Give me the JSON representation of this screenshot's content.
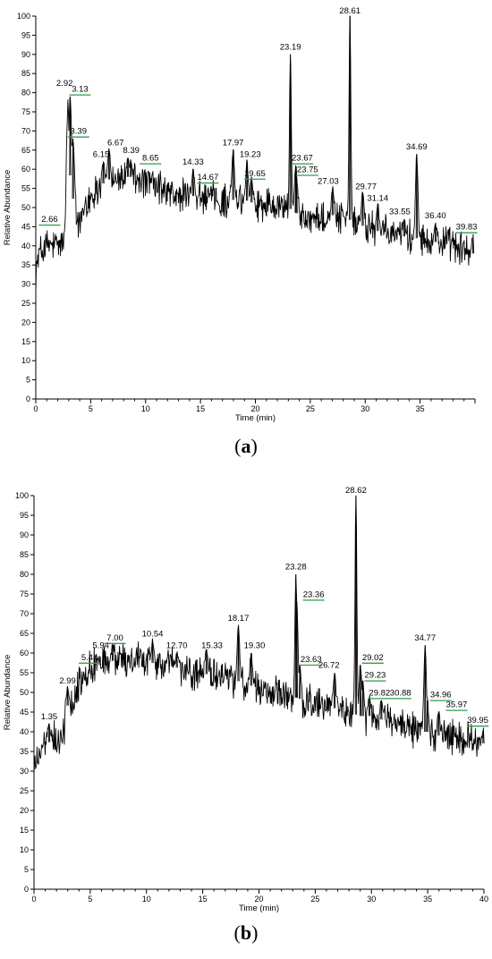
{
  "chart_data": [
    {
      "type": "line",
      "panel": "(a)",
      "panel_letter": "a",
      "xlabel": "Time (min)",
      "ylabel": "Relative Abundance",
      "xlim": [
        0,
        40
      ],
      "ylim": [
        0,
        100
      ],
      "xticks": [
        0,
        5,
        10,
        15,
        20,
        25,
        30,
        35
      ],
      "yticks": [
        0,
        5,
        10,
        15,
        20,
        25,
        30,
        35,
        40,
        45,
        50,
        55,
        60,
        65,
        70,
        75,
        80,
        85,
        90,
        95,
        100
      ],
      "trace_color": "#000000",
      "marker_color": "#2e9e4f",
      "baseline": [
        [
          0,
          33
        ],
        [
          0.3,
          38
        ],
        [
          1,
          40
        ],
        [
          2,
          40
        ],
        [
          2.6,
          41
        ],
        [
          2.75,
          55
        ],
        [
          2.85,
          72
        ],
        [
          2.92,
          80
        ],
        [
          3.05,
          60
        ],
        [
          3.3,
          55
        ],
        [
          3.6,
          46
        ],
        [
          4,
          46
        ],
        [
          5,
          53
        ],
        [
          6,
          56
        ],
        [
          7,
          58
        ],
        [
          8,
          58
        ],
        [
          9,
          58
        ],
        [
          10,
          57
        ],
        [
          11,
          55
        ],
        [
          12,
          54
        ],
        [
          13,
          53
        ],
        [
          14,
          53
        ],
        [
          15,
          53
        ],
        [
          16,
          52
        ],
        [
          17,
          52
        ],
        [
          18,
          52
        ],
        [
          19,
          52
        ],
        [
          20,
          51
        ],
        [
          21,
          51
        ],
        [
          22,
          51
        ],
        [
          23,
          50
        ],
        [
          24,
          48
        ],
        [
          25,
          47
        ],
        [
          26,
          47
        ],
        [
          27,
          48
        ],
        [
          28,
          48
        ],
        [
          29,
          46
        ],
        [
          30,
          45
        ],
        [
          31,
          44
        ],
        [
          32,
          43
        ],
        [
          33,
          43
        ],
        [
          34,
          42
        ],
        [
          35,
          42
        ],
        [
          36,
          41
        ],
        [
          37,
          41
        ],
        [
          38,
          40
        ],
        [
          39,
          39
        ],
        [
          39.8,
          38
        ]
      ],
      "noise": 3.5,
      "peaks": [
        {
          "x": 2.92,
          "y": 80,
          "label": "2.92",
          "lx": -0.3,
          "ly": 81.5
        },
        {
          "x": 3.13,
          "y": 79,
          "label": "3.13",
          "lx": 0.9,
          "ly": 80,
          "marker": true
        },
        {
          "x": 3.39,
          "y": 68,
          "label": "3.39",
          "lx": 0.5,
          "ly": 69,
          "marker": true
        },
        {
          "x": 2.66,
          "y": 45,
          "label": "2.66",
          "lx": -1.4,
          "ly": 46,
          "marker": true
        },
        {
          "x": 6.15,
          "y": 62,
          "label": "6.15",
          "lx": -0.2,
          "ly": 63
        },
        {
          "x": 6.67,
          "y": 65,
          "label": "6.67",
          "lx": 0.6,
          "ly": 66
        },
        {
          "x": 8.39,
          "y": 63,
          "label": "8.39",
          "lx": 0.3,
          "ly": 64
        },
        {
          "x": 8.65,
          "y": 62,
          "label": "8.65",
          "lx": 1.8,
          "ly": 62,
          "marker": true
        },
        {
          "x": 14.33,
          "y": 60,
          "label": "14.33",
          "lx": 0,
          "ly": 61
        },
        {
          "x": 14.67,
          "y": 56,
          "label": "14.67",
          "lx": 1.0,
          "ly": 57,
          "marker": true
        },
        {
          "x": 17.97,
          "y": 65,
          "label": "17.97",
          "lx": 0,
          "ly": 66
        },
        {
          "x": 19.23,
          "y": 62,
          "label": "19.23",
          "lx": 0.3,
          "ly": 63
        },
        {
          "x": 19.65,
          "y": 58,
          "label": "19.65",
          "lx": 0.3,
          "ly": 58,
          "marker": true
        },
        {
          "x": 23.19,
          "y": 90,
          "label": "23.19",
          "lx": 0,
          "ly": 91
        },
        {
          "x": 23.67,
          "y": 61,
          "label": "23.67",
          "lx": 0.6,
          "ly": 62,
          "marker": true
        },
        {
          "x": 23.75,
          "y": 58,
          "label": "23.75",
          "lx": 1.0,
          "ly": 59,
          "marker": true
        },
        {
          "x": 27.03,
          "y": 55,
          "label": "27.03",
          "lx": -0.4,
          "ly": 56
        },
        {
          "x": 28.61,
          "y": 100,
          "label": "28.61",
          "lx": 0,
          "ly": 100.5
        },
        {
          "x": 29.77,
          "y": 54,
          "label": "29.77",
          "lx": 0.3,
          "ly": 54.5
        },
        {
          "x": 31.14,
          "y": 51,
          "label": "31.14",
          "lx": 0,
          "ly": 51.5
        },
        {
          "x": 33.55,
          "y": 47,
          "label": "33.55",
          "lx": -0.4,
          "ly": 48
        },
        {
          "x": 34.69,
          "y": 64,
          "label": "34.69",
          "lx": 0,
          "ly": 65
        },
        {
          "x": 36.4,
          "y": 46,
          "label": "36.40",
          "lx": 0,
          "ly": 47
        },
        {
          "x": 39.83,
          "y": 43,
          "label": "39.83",
          "lx": -0.6,
          "ly": 44,
          "marker": true
        }
      ]
    },
    {
      "type": "line",
      "panel": "(b)",
      "panel_letter": "b",
      "xlabel": "Time (min)",
      "ylabel": "Relative Abundance",
      "xlim": [
        0,
        40
      ],
      "ylim": [
        0,
        100
      ],
      "xticks": [
        0,
        5,
        10,
        15,
        20,
        25,
        30,
        35,
        40
      ],
      "yticks": [
        0,
        5,
        10,
        15,
        20,
        25,
        30,
        35,
        40,
        45,
        50,
        55,
        60,
        65,
        70,
        75,
        80,
        85,
        90,
        95,
        100
      ],
      "trace_color": "#000000",
      "marker_color": "#2e9e4f",
      "baseline": [
        [
          0,
          30
        ],
        [
          0.3,
          34
        ],
        [
          1,
          37
        ],
        [
          2,
          38
        ],
        [
          2.8,
          40
        ],
        [
          3,
          47
        ],
        [
          4,
          52
        ],
        [
          5,
          56
        ],
        [
          6,
          58
        ],
        [
          7,
          58
        ],
        [
          8,
          58
        ],
        [
          9,
          58
        ],
        [
          10,
          58
        ],
        [
          11,
          57
        ],
        [
          12,
          57
        ],
        [
          13,
          56
        ],
        [
          14,
          55
        ],
        [
          15,
          55
        ],
        [
          16,
          54
        ],
        [
          17,
          54
        ],
        [
          18,
          53
        ],
        [
          19,
          52
        ],
        [
          20,
          51
        ],
        [
          21,
          50
        ],
        [
          22,
          50
        ],
        [
          23,
          49
        ],
        [
          24,
          48
        ],
        [
          25,
          47
        ],
        [
          26,
          46
        ],
        [
          27,
          46
        ],
        [
          28,
          45
        ],
        [
          29,
          44
        ],
        [
          30,
          44
        ],
        [
          31,
          43
        ],
        [
          32,
          42
        ],
        [
          33,
          41
        ],
        [
          34,
          40
        ],
        [
          35,
          40
        ],
        [
          36,
          39
        ],
        [
          37,
          39
        ],
        [
          38,
          38
        ],
        [
          39,
          38
        ],
        [
          40,
          37
        ]
      ],
      "noise": 3.5,
      "peaks": [
        {
          "x": 1.35,
          "y": 42,
          "label": "1.35",
          "lx": 0,
          "ly": 43
        },
        {
          "x": 2.99,
          "y": 51,
          "label": "2.99",
          "lx": 0,
          "ly": 52
        },
        {
          "x": 5.44,
          "y": 57,
          "label": "5.44",
          "lx": -0.5,
          "ly": 58,
          "marker": true
        },
        {
          "x": 5.94,
          "y": 60,
          "label": "5.94",
          "lx": 0,
          "ly": 61
        },
        {
          "x": 7.0,
          "y": 62,
          "label": "7.00",
          "lx": 0.2,
          "ly": 63,
          "marker": true
        },
        {
          "x": 10.54,
          "y": 63,
          "label": "10.54",
          "lx": 0,
          "ly": 64
        },
        {
          "x": 12.7,
          "y": 60,
          "label": "12.70",
          "lx": 0,
          "ly": 61
        },
        {
          "x": 15.33,
          "y": 61,
          "label": "15.33",
          "lx": 0.5,
          "ly": 61
        },
        {
          "x": 18.17,
          "y": 67,
          "label": "18.17",
          "lx": 0,
          "ly": 68
        },
        {
          "x": 19.3,
          "y": 60,
          "label": "19.30",
          "lx": 0.3,
          "ly": 61
        },
        {
          "x": 23.28,
          "y": 80,
          "label": "23.28",
          "lx": 0,
          "ly": 81
        },
        {
          "x": 23.36,
          "y": 73,
          "label": "23.36",
          "lx": 1.5,
          "ly": 74,
          "marker": true
        },
        {
          "x": 23.63,
          "y": 57,
          "label": "23.63",
          "lx": 1.0,
          "ly": 57.5,
          "marker": true
        },
        {
          "x": 26.72,
          "y": 55,
          "label": "26.72",
          "lx": -0.5,
          "ly": 56
        },
        {
          "x": 28.62,
          "y": 100,
          "label": "28.62",
          "lx": 0,
          "ly": 100.5
        },
        {
          "x": 29.02,
          "y": 57,
          "label": "29.02",
          "lx": 1.1,
          "ly": 58,
          "marker": true
        },
        {
          "x": 29.23,
          "y": 53,
          "label": "29.23",
          "lx": 1.1,
          "ly": 53.5,
          "marker": true
        },
        {
          "x": 29.82,
          "y": 49,
          "label": "29.82",
          "lx": 0.9,
          "ly": 49,
          "marker": true
        },
        {
          "x": 30.88,
          "y": 48,
          "label": "30.88",
          "lx": 1.7,
          "ly": 49,
          "marker": true
        },
        {
          "x": 34.77,
          "y": 62,
          "label": "34.77",
          "lx": 0,
          "ly": 63
        },
        {
          "x": 34.96,
          "y": 48,
          "label": "34.96",
          "lx": 1.2,
          "ly": 48.5,
          "marker": true
        },
        {
          "x": 35.97,
          "y": 45,
          "label": "35.97",
          "lx": 1.6,
          "ly": 46,
          "marker": true
        },
        {
          "x": 39.95,
          "y": 41,
          "label": "39.95",
          "lx": -0.5,
          "ly": 42,
          "marker": true
        }
      ]
    }
  ]
}
